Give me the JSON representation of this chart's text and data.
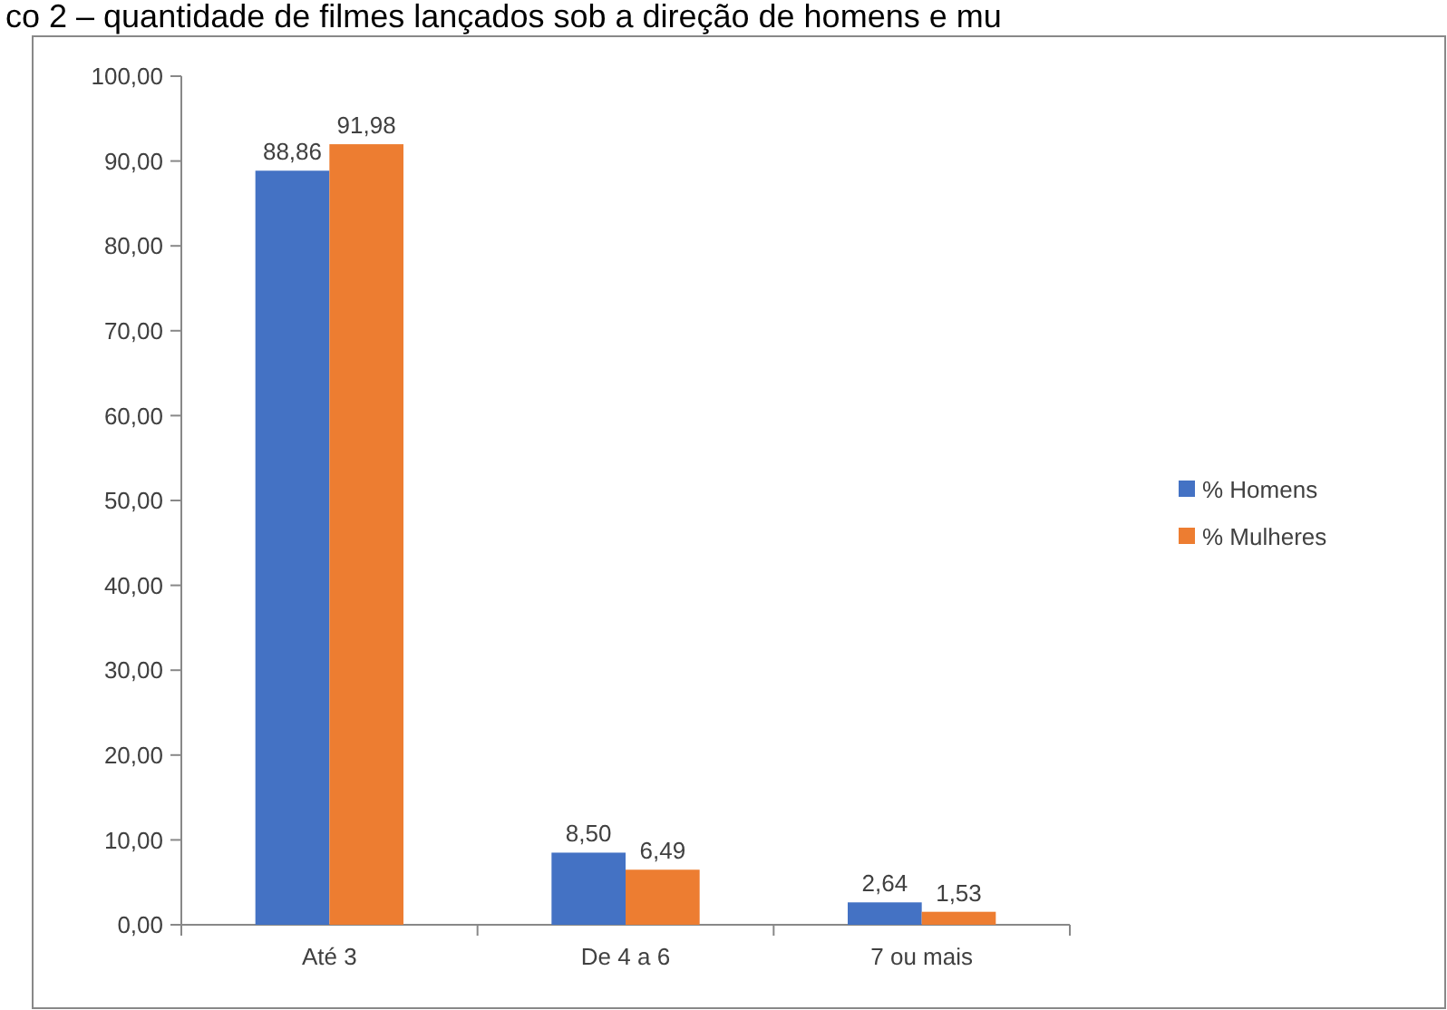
{
  "chart_data": {
    "type": "bar",
    "title": "co 2 – quantidade de filmes lançados sob a direção de homens e mu",
    "categories": [
      "Até 3",
      "De 4 a 6",
      "7 ou mais"
    ],
    "series": [
      {
        "name": "% Homens",
        "color": "#4472c4",
        "values": [
          88.86,
          8.5,
          2.64
        ],
        "value_labels": [
          "88,86",
          "8,50",
          "2,64"
        ]
      },
      {
        "name": "% Mulheres",
        "color": "#ed7d31",
        "values": [
          91.98,
          6.49,
          1.53
        ],
        "value_labels": [
          "91,98",
          "6,49",
          "1,53"
        ]
      }
    ],
    "ylim": [
      0,
      100
    ],
    "yticks": [
      {
        "value": 0,
        "label": "0,00"
      },
      {
        "value": 10,
        "label": "10,00"
      },
      {
        "value": 20,
        "label": "20,00"
      },
      {
        "value": 30,
        "label": "30,00"
      },
      {
        "value": 40,
        "label": "40,00"
      },
      {
        "value": 50,
        "label": "50,00"
      },
      {
        "value": 60,
        "label": "60,00"
      },
      {
        "value": 70,
        "label": "70,00"
      },
      {
        "value": 80,
        "label": "80,00"
      },
      {
        "value": 90,
        "label": "90,00"
      },
      {
        "value": 100,
        "label": "100,00"
      }
    ],
    "legend": "right"
  }
}
